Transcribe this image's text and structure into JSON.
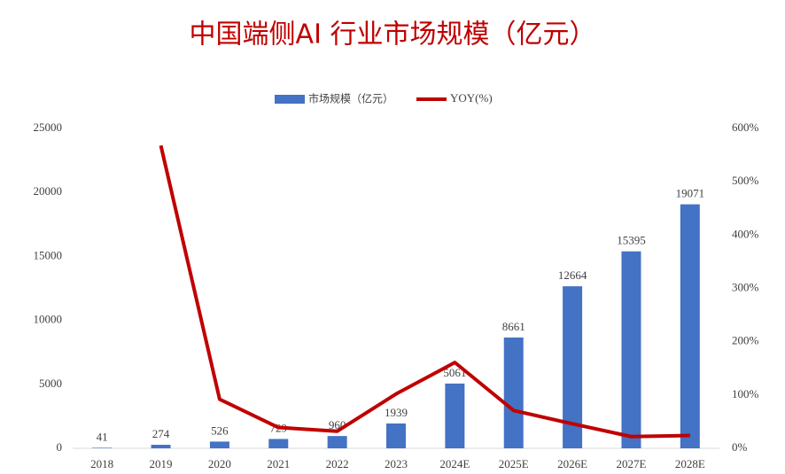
{
  "chart_data": {
    "type": "bar",
    "title": "中国端侧AI 行业市场规模（亿元）",
    "categories": [
      "2018",
      "2019",
      "2020",
      "2021",
      "2022",
      "2023",
      "2024E",
      "2025E",
      "2026E",
      "2027E",
      "2028E"
    ],
    "series": [
      {
        "name": "市场规模（亿元）",
        "type": "bar",
        "color": "#4472c4",
        "values": [
          41,
          274,
          526,
          729,
          960,
          1939,
          5061,
          8661,
          12664,
          15395,
          19071
        ]
      },
      {
        "name": "YOY(%)",
        "type": "line",
        "axis": "y2",
        "color": "#c00000",
        "values": [
          null,
          568,
          92,
          39,
          32,
          102,
          161,
          71,
          46,
          22,
          24
        ]
      }
    ],
    "ylim": [
      0,
      25000
    ],
    "yticks": [
      0,
      5000,
      10000,
      15000,
      20000,
      25000
    ],
    "y2lim": [
      0,
      600
    ],
    "y2ticks": [
      {
        "value": 0,
        "label": "0%"
      },
      {
        "value": 100,
        "label": "100%"
      },
      {
        "value": 200,
        "label": "200%"
      },
      {
        "value": 300,
        "label": "300%"
      },
      {
        "value": 400,
        "label": "400%"
      },
      {
        "value": 500,
        "label": "500%"
      },
      {
        "value": 600,
        "label": "600%"
      }
    ],
    "legend": "top",
    "grid": false
  }
}
